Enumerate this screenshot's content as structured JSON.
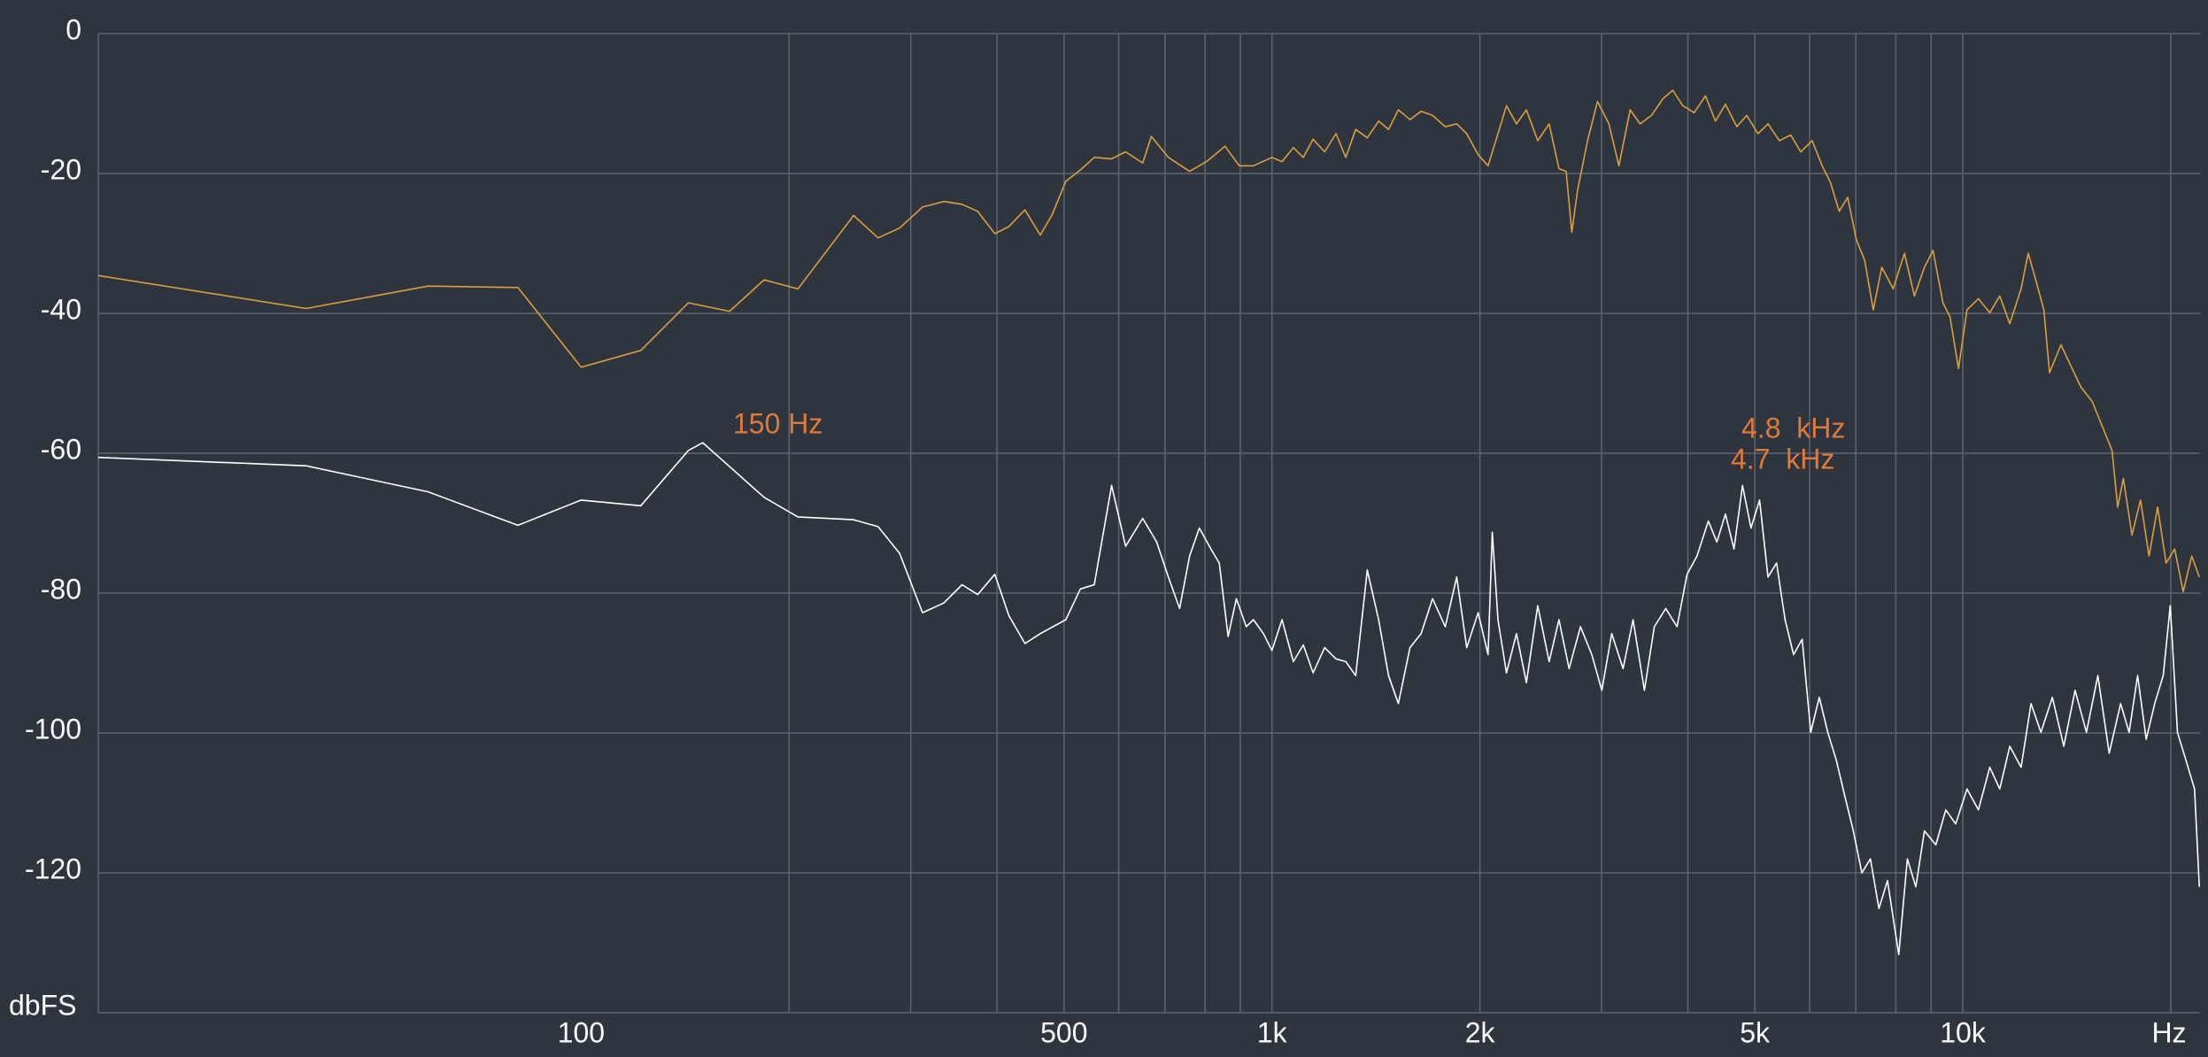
{
  "chart_data": {
    "type": "line",
    "x_label": "Hz",
    "y_label": "dbFS",
    "xlog": true,
    "grid": true,
    "xlim": [
      20,
      22050
    ],
    "ylim": [
      -140,
      0
    ],
    "yticks": [
      0,
      -20,
      -40,
      -60,
      -80,
      -100,
      -120
    ],
    "xticks": [
      100,
      500,
      {
        "value": 1000,
        "label": "1k"
      },
      {
        "value": 2000,
        "label": "2k"
      },
      {
        "value": 5000,
        "label": "5k"
      },
      {
        "value": 10000,
        "label": "10k"
      }
    ],
    "xgrid": [
      200,
      300,
      400,
      500,
      600,
      700,
      800,
      900,
      1000,
      2000,
      3000,
      4000,
      5000,
      6000,
      7000,
      8000,
      9000,
      10000,
      20000
    ],
    "annotations": [
      "150 Hz",
      "4.8  kHz",
      "4.7  kHz"
    ],
    "series": [
      {
        "color": "#d9a03f",
        "x": [
          20,
          40,
          60,
          81,
          100,
          122,
          143,
          164,
          184,
          206,
          248,
          269,
          289,
          312,
          335,
          356,
          375,
          397,
          416,
          439,
          462,
          480,
          503,
          528,
          553,
          586,
          614,
          650,
          669,
          708,
          760,
          804,
          855,
          897,
          940,
          1000,
          1034,
          1074,
          1110,
          1147,
          1192,
          1238,
          1279,
          1322,
          1374,
          1427,
          1475,
          1524,
          1584,
          1644,
          1708,
          1782,
          1851,
          1914,
          1988,
          2055,
          2124,
          2185,
          2259,
          2335,
          2425,
          2519,
          2603,
          2666,
          2717,
          2769,
          2863,
          2959,
          3074,
          3178,
          3300,
          3412,
          3543,
          3680,
          3804,
          3933,
          4085,
          4242,
          4385,
          4533,
          4709,
          4867,
          5053,
          5224,
          5427,
          5636,
          5826,
          6053,
          6258,
          6434,
          6622,
          6813,
          7011,
          7211,
          7420,
          7633,
          7929,
          8233,
          8511,
          8799,
          9054,
          9359,
          9584,
          9858,
          10143,
          10534,
          10941,
          11310,
          11694,
          12145,
          12435,
          12735,
          13101,
          13352,
          13869,
          14336,
          14820,
          15393,
          15986,
          16444,
          16760,
          17080,
          17576,
          18084,
          18604,
          19142,
          19694,
          20263,
          20845,
          21449,
          22000
        ],
        "values": [
          -34.6,
          -39.3,
          -36.1,
          -36.3,
          -47.7,
          -45.3,
          -38.5,
          -39.7,
          -35.2,
          -36.5,
          -26.0,
          -29.2,
          -27.8,
          -24.8,
          -24.0,
          -24.4,
          -25.4,
          -28.6,
          -27.6,
          -25.2,
          -28.8,
          -26.0,
          -21.1,
          -19.5,
          -17.7,
          -17.9,
          -16.9,
          -18.5,
          -14.7,
          -17.7,
          -19.7,
          -18.3,
          -16.1,
          -18.9,
          -18.9,
          -17.7,
          -18.3,
          -16.3,
          -17.7,
          -15.1,
          -16.9,
          -14.3,
          -17.7,
          -13.7,
          -14.9,
          -12.5,
          -13.7,
          -10.9,
          -12.3,
          -11.1,
          -11.7,
          -13.3,
          -12.9,
          -14.3,
          -17.3,
          -18.9,
          -14.3,
          -10.3,
          -12.9,
          -10.9,
          -15.3,
          -12.9,
          -19.3,
          -19.7,
          -28.4,
          -22.4,
          -15.3,
          -9.7,
          -12.9,
          -18.9,
          -10.9,
          -12.9,
          -11.7,
          -9.3,
          -8.1,
          -10.3,
          -11.3,
          -8.9,
          -12.5,
          -10.1,
          -13.3,
          -11.7,
          -14.3,
          -12.9,
          -15.3,
          -14.5,
          -16.9,
          -15.3,
          -18.9,
          -21.3,
          -25.4,
          -23.4,
          -29.4,
          -32.4,
          -39.5,
          -33.4,
          -36.5,
          -31.4,
          -37.5,
          -33.4,
          -31.0,
          -38.5,
          -40.5,
          -47.9,
          -39.5,
          -37.9,
          -39.9,
          -37.5,
          -41.5,
          -36.5,
          -31.4,
          -35.0,
          -39.5,
          -48.5,
          -44.5,
          -47.5,
          -50.5,
          -52.6,
          -56.6,
          -59.6,
          -67.7,
          -63.6,
          -71.7,
          -66.7,
          -74.7,
          -67.7,
          -75.7,
          -73.7,
          -79.8,
          -74.7,
          -77.7
        ]
      },
      {
        "color": "#ffffff",
        "x": [
          20,
          40,
          60,
          81,
          100,
          122,
          143,
          150,
          184,
          206,
          248,
          269,
          289,
          312,
          335,
          356,
          375,
          397,
          416,
          439,
          462,
          503,
          528,
          553,
          586,
          614,
          650,
          681,
          708,
          735,
          760,
          785,
          816,
          839,
          864,
          888,
          918,
          940,
          972,
          1000,
          1034,
          1074,
          1110,
          1147,
          1192,
          1238,
          1279,
          1322,
          1374,
          1427,
          1475,
          1524,
          1584,
          1644,
          1708,
          1782,
          1851,
          1914,
          1988,
          2055,
          2084,
          2124,
          2185,
          2259,
          2335,
          2425,
          2519,
          2603,
          2692,
          2796,
          2904,
          3002,
          3103,
          3223,
          3332,
          3460,
          3577,
          3715,
          3858,
          3989,
          4123,
          4282,
          4406,
          4533,
          4664,
          4799,
          4937,
          5080,
          5224,
          5376,
          5531,
          5690,
          5855,
          6024,
          6197,
          6376,
          6561,
          6748,
          6944,
          7143,
          7350,
          7561,
          7780,
          8079,
          8313,
          8552,
          8799,
          9140,
          9447,
          9765,
          10143,
          10534,
          10941,
          11310,
          11694,
          12145,
          12553,
          12976,
          13478,
          14001,
          14541,
          15102,
          15686,
          16292,
          16922,
          17409,
          17911,
          18427,
          18958,
          19504,
          19970,
          20450,
          21039,
          21650,
          22000
        ],
        "values": [
          -60.6,
          -61.8,
          -65.5,
          -70.3,
          -66.7,
          -67.5,
          -59.6,
          -58.5,
          -66.3,
          -69.1,
          -69.5,
          -70.5,
          -74.3,
          -82.8,
          -81.4,
          -78.8,
          -80.2,
          -77.3,
          -83.2,
          -87.2,
          -85.8,
          -83.8,
          -79.4,
          -78.8,
          -64.6,
          -73.3,
          -69.3,
          -72.7,
          -77.7,
          -82.2,
          -74.7,
          -70.7,
          -73.7,
          -75.7,
          -86.2,
          -80.8,
          -84.8,
          -83.8,
          -85.8,
          -88.2,
          -83.8,
          -89.8,
          -87.4,
          -91.4,
          -87.8,
          -89.4,
          -89.8,
          -91.8,
          -76.7,
          -83.8,
          -91.8,
          -95.8,
          -87.8,
          -85.8,
          -80.8,
          -84.8,
          -77.7,
          -87.8,
          -82.8,
          -88.8,
          -71.3,
          -83.8,
          -91.4,
          -85.8,
          -92.8,
          -81.8,
          -89.8,
          -83.8,
          -90.8,
          -84.8,
          -88.8,
          -93.9,
          -85.8,
          -90.8,
          -83.8,
          -93.9,
          -84.8,
          -82.2,
          -84.8,
          -77.3,
          -74.7,
          -69.7,
          -72.7,
          -68.7,
          -73.7,
          -64.6,
          -70.7,
          -66.7,
          -77.7,
          -75.7,
          -83.8,
          -88.8,
          -86.6,
          -99.9,
          -94.9,
          -99.9,
          -103.9,
          -109.0,
          -114.0,
          -120.0,
          -118.0,
          -125.1,
          -121.1,
          -131.7,
          -118.0,
          -122.0,
          -114.0,
          -116.0,
          -111.0,
          -113.0,
          -108.0,
          -111.0,
          -104.9,
          -108.0,
          -101.9,
          -104.9,
          -95.8,
          -99.9,
          -94.9,
          -101.9,
          -93.9,
          -99.9,
          -91.8,
          -102.9,
          -95.8,
          -99.9,
          -91.8,
          -100.9,
          -95.8,
          -91.8,
          -81.8,
          -99.9,
          -103.9,
          -108.0,
          -122.0
        ]
      }
    ]
  }
}
